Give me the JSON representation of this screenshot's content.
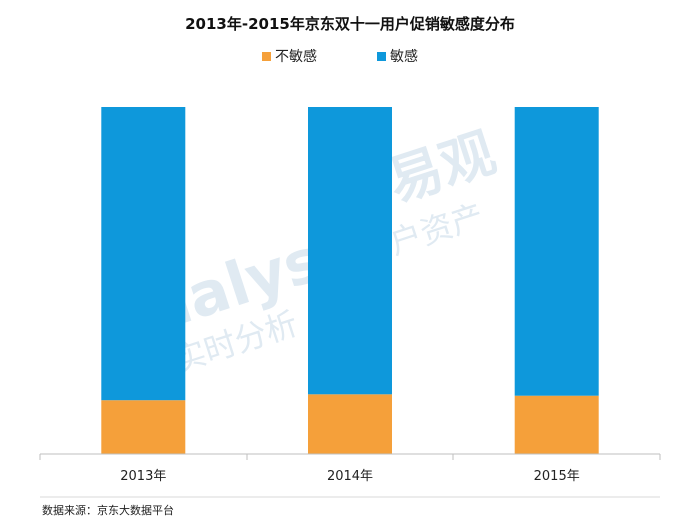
{
  "chart_data": {
    "type": "bar",
    "stacked": true,
    "title": "2013年-2015年京东双十一用户促销敏感度分布",
    "categories": [
      "2013年",
      "2014年",
      "2015年"
    ],
    "series": [
      {
        "name": "不敏感",
        "color": "#F5A03A",
        "values": [
          15.5,
          17.2,
          16.8
        ]
      },
      {
        "name": "敏感",
        "color": "#0E98DB",
        "values": [
          84.5,
          82.8,
          83.2
        ]
      }
    ],
    "ylim": [
      0,
      100
    ],
    "legend_position": "top-center",
    "grid": false
  },
  "source": "数据来源：京东大数据平台",
  "watermark": {
    "brand": "analys",
    "cn_large": "易观",
    "cn_line1": "用户资产",
    "cn_line2": "实时分析"
  }
}
